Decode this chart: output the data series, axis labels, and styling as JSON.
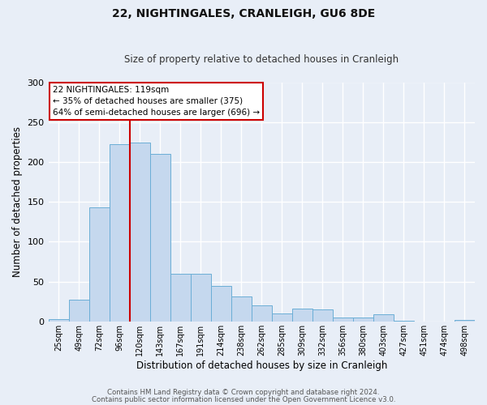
{
  "title": "22, NIGHTINGALES, CRANLEIGH, GU6 8DE",
  "subtitle": "Size of property relative to detached houses in Cranleigh",
  "xlabel": "Distribution of detached houses by size in Cranleigh",
  "ylabel": "Number of detached properties",
  "bar_values": [
    3,
    27,
    143,
    222,
    224,
    210,
    60,
    60,
    44,
    31,
    20,
    10,
    16,
    15,
    5,
    5,
    9,
    1,
    0,
    0,
    2
  ],
  "x_tick_labels": [
    "25sqm",
    "49sqm",
    "72sqm",
    "96sqm",
    "120sqm",
    "143sqm",
    "167sqm",
    "191sqm",
    "214sqm",
    "238sqm",
    "262sqm",
    "285sqm",
    "309sqm",
    "332sqm",
    "356sqm",
    "380sqm",
    "403sqm",
    "427sqm",
    "451sqm",
    "474sqm",
    "498sqm"
  ],
  "bar_color": "#c5d8ee",
  "bar_edge_color": "#6baed6",
  "vline_color": "#cc0000",
  "annotation_title": "22 NIGHTINGALES: 119sqm",
  "annotation_line1": "← 35% of detached houses are smaller (375)",
  "annotation_line2": "64% of semi-detached houses are larger (696) →",
  "annotation_box_color": "#ffffff",
  "annotation_box_edge": "#cc0000",
  "ylim": [
    0,
    300
  ],
  "yticks": [
    0,
    50,
    100,
    150,
    200,
    250,
    300
  ],
  "footer1": "Contains HM Land Registry data © Crown copyright and database right 2024.",
  "footer2": "Contains public sector information licensed under the Open Government Licence v3.0.",
  "bg_color": "#e8eef7",
  "grid_color": "#ffffff",
  "vline_index": 4.0
}
